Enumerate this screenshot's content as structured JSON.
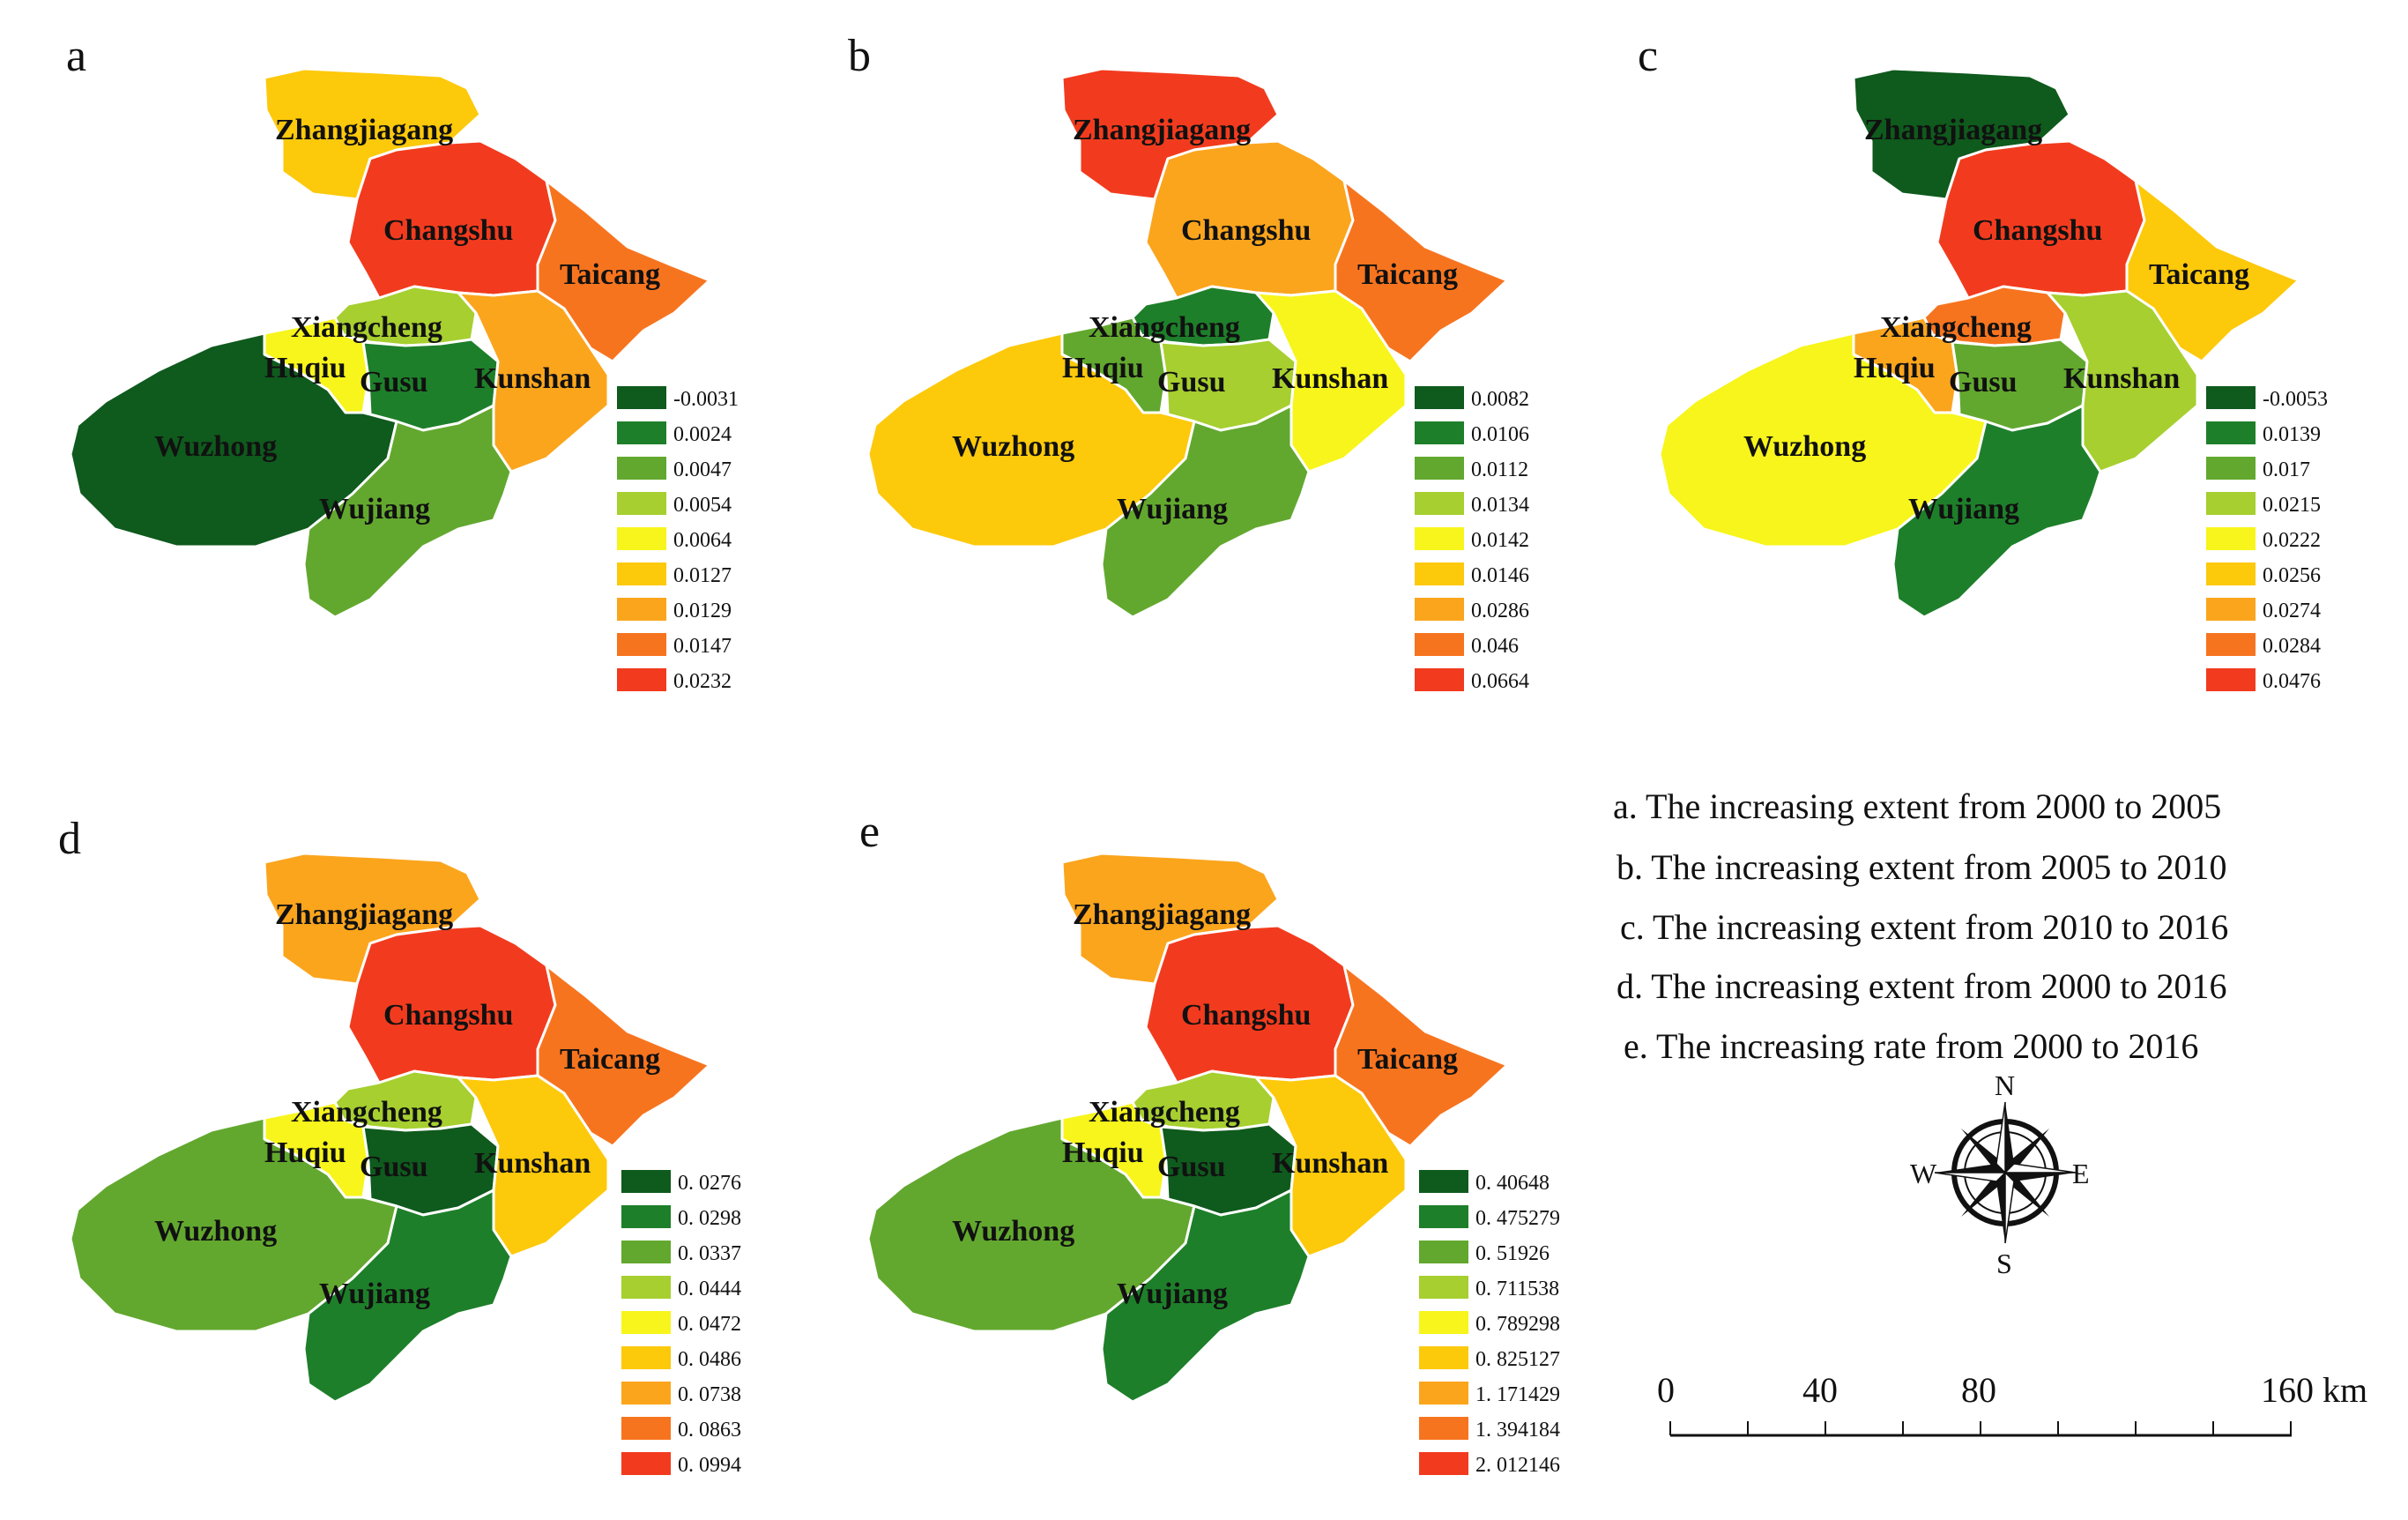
{
  "colors": {
    "c0": "#0f5a1d",
    "c1": "#1e7f2a",
    "c2": "#62a82e",
    "c3": "#a6cf2f",
    "c4": "#f7f51b",
    "c5": "#fdc90b",
    "c6": "#fba51d",
    "c7": "#f7741f",
    "c8": "#f23b1e"
  },
  "region_names": {
    "zhangjiagang": "Zhangjiagang",
    "changshu": "Changshu",
    "taicang": "Taicang",
    "xiangcheng": "Xiangcheng",
    "huqiu_short": "Huqiu",
    "huqiu_d": "Huqiu",
    "gusu": "Gusu",
    "kunshan": "Kunshan",
    "wuzhong": "Wuzhong",
    "wujiang": "Wujiang"
  },
  "panels": [
    {
      "tag": "a",
      "legend": [
        "-0.0031",
        "0.0024",
        "0.0047",
        "0.0054",
        "0.0064",
        "0.0127",
        "0.0129",
        "0.0147",
        "0.0232"
      ],
      "fills": {
        "zhangjiagang": 5,
        "changshu": 8,
        "taicang": 7,
        "xiangcheng": 3,
        "huqiu": 4,
        "gusu": 1,
        "kunshan": 6,
        "wuzhong": 0,
        "wujiang": 2
      }
    },
    {
      "tag": "b",
      "legend": [
        "0.0082",
        "0.0106",
        "0.0112",
        "0.0134",
        "0.0142",
        "0.0146",
        "0.0286",
        "0.046",
        "0.0664"
      ],
      "fills": {
        "zhangjiagang": 8,
        "changshu": 6,
        "taicang": 7,
        "xiangcheng": 1,
        "huqiu": 2,
        "gusu": 3,
        "kunshan": 4,
        "wuzhong": 5,
        "wujiang": 2
      }
    },
    {
      "tag": "c",
      "legend": [
        "-0.0053",
        "0.0139",
        "0.017",
        "0.0215",
        "0.0222",
        "0.0256",
        "0.0274",
        "0.0284",
        "0.0476"
      ],
      "fills": {
        "zhangjiagang": 0,
        "changshu": 8,
        "taicang": 5,
        "xiangcheng": 7,
        "huqiu": 6,
        "gusu": 2,
        "kunshan": 3,
        "wuzhong": 4,
        "wujiang": 1
      }
    },
    {
      "tag": "d",
      "legend": [
        "0. 0276",
        "0. 0298",
        "0. 0337",
        "0. 0444",
        "0. 0472",
        "0. 0486",
        "0. 0738",
        "0. 0863",
        "0. 0994"
      ],
      "fills": {
        "zhangjiagang": 6,
        "changshu": 8,
        "taicang": 7,
        "xiangcheng": 3,
        "huqiu": 4,
        "gusu": 0,
        "kunshan": 5,
        "wuzhong": 2,
        "wujiang": 1
      }
    },
    {
      "tag": "e",
      "legend": [
        "0. 40648",
        "0. 475279",
        "0. 51926",
        "0. 711538",
        "0. 789298",
        "0. 825127",
        "1. 171429",
        "1. 394184",
        "2. 012146"
      ],
      "fills": {
        "zhangjiagang": 6,
        "changshu": 8,
        "taicang": 7,
        "xiangcheng": 3,
        "huqiu": 4,
        "gusu": 0,
        "kunshan": 5,
        "wuzhong": 2,
        "wujiang": 1
      }
    }
  ],
  "captions": [
    "a. The increasing extent from 2000 to 2005",
    "b. The  increasing extent from 2005 to 2010",
    "c. The  increasing extent from 2010 to 2016",
    "d. The  increasing extent from 2000 to 2016",
    "e. The  increasing rate from 2000 to 2016"
  ],
  "compass": {
    "n": "N",
    "s": "S",
    "e": "E",
    "w": "W"
  },
  "scale_bar": {
    "labels": [
      "0",
      "40",
      "80",
      "160 km"
    ]
  }
}
